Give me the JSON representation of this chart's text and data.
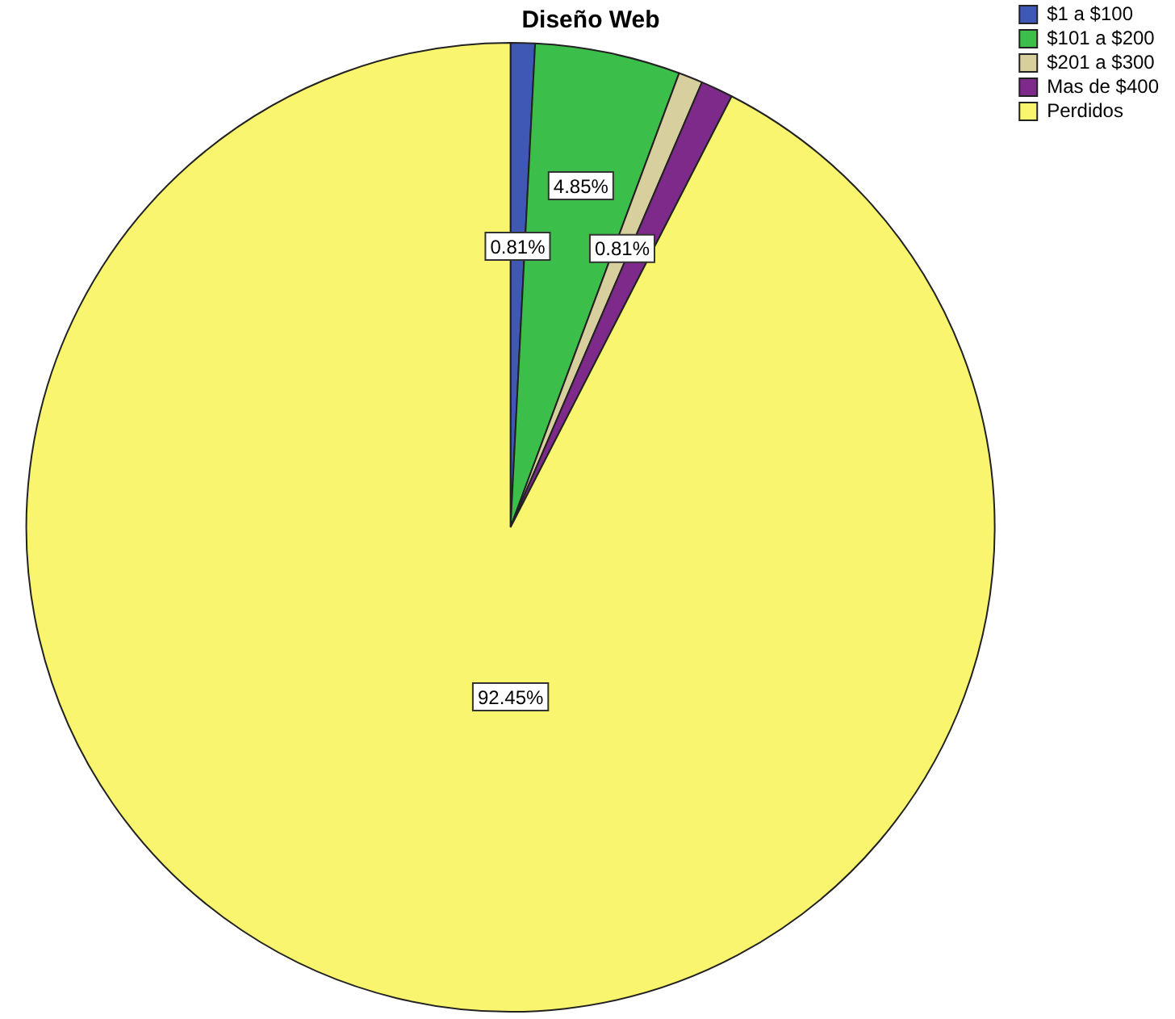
{
  "chart_data": {
    "type": "pie",
    "title": "Diseño Web",
    "categories": [
      "$1 a $100",
      "$101 a $200",
      "$201 a $300",
      "Mas de $400",
      "Perdidos"
    ],
    "values": [
      0.81,
      4.85,
      0.81,
      1.08,
      92.45
    ],
    "colors": [
      "#3f57b5",
      "#3cbf4a",
      "#d7cf9e",
      "#7e2a8a",
      "#f9f56e"
    ],
    "value_labels": [
      "0.81%",
      "4.85%",
      "0.81%",
      null,
      "92.45%"
    ],
    "legend": "top right"
  }
}
